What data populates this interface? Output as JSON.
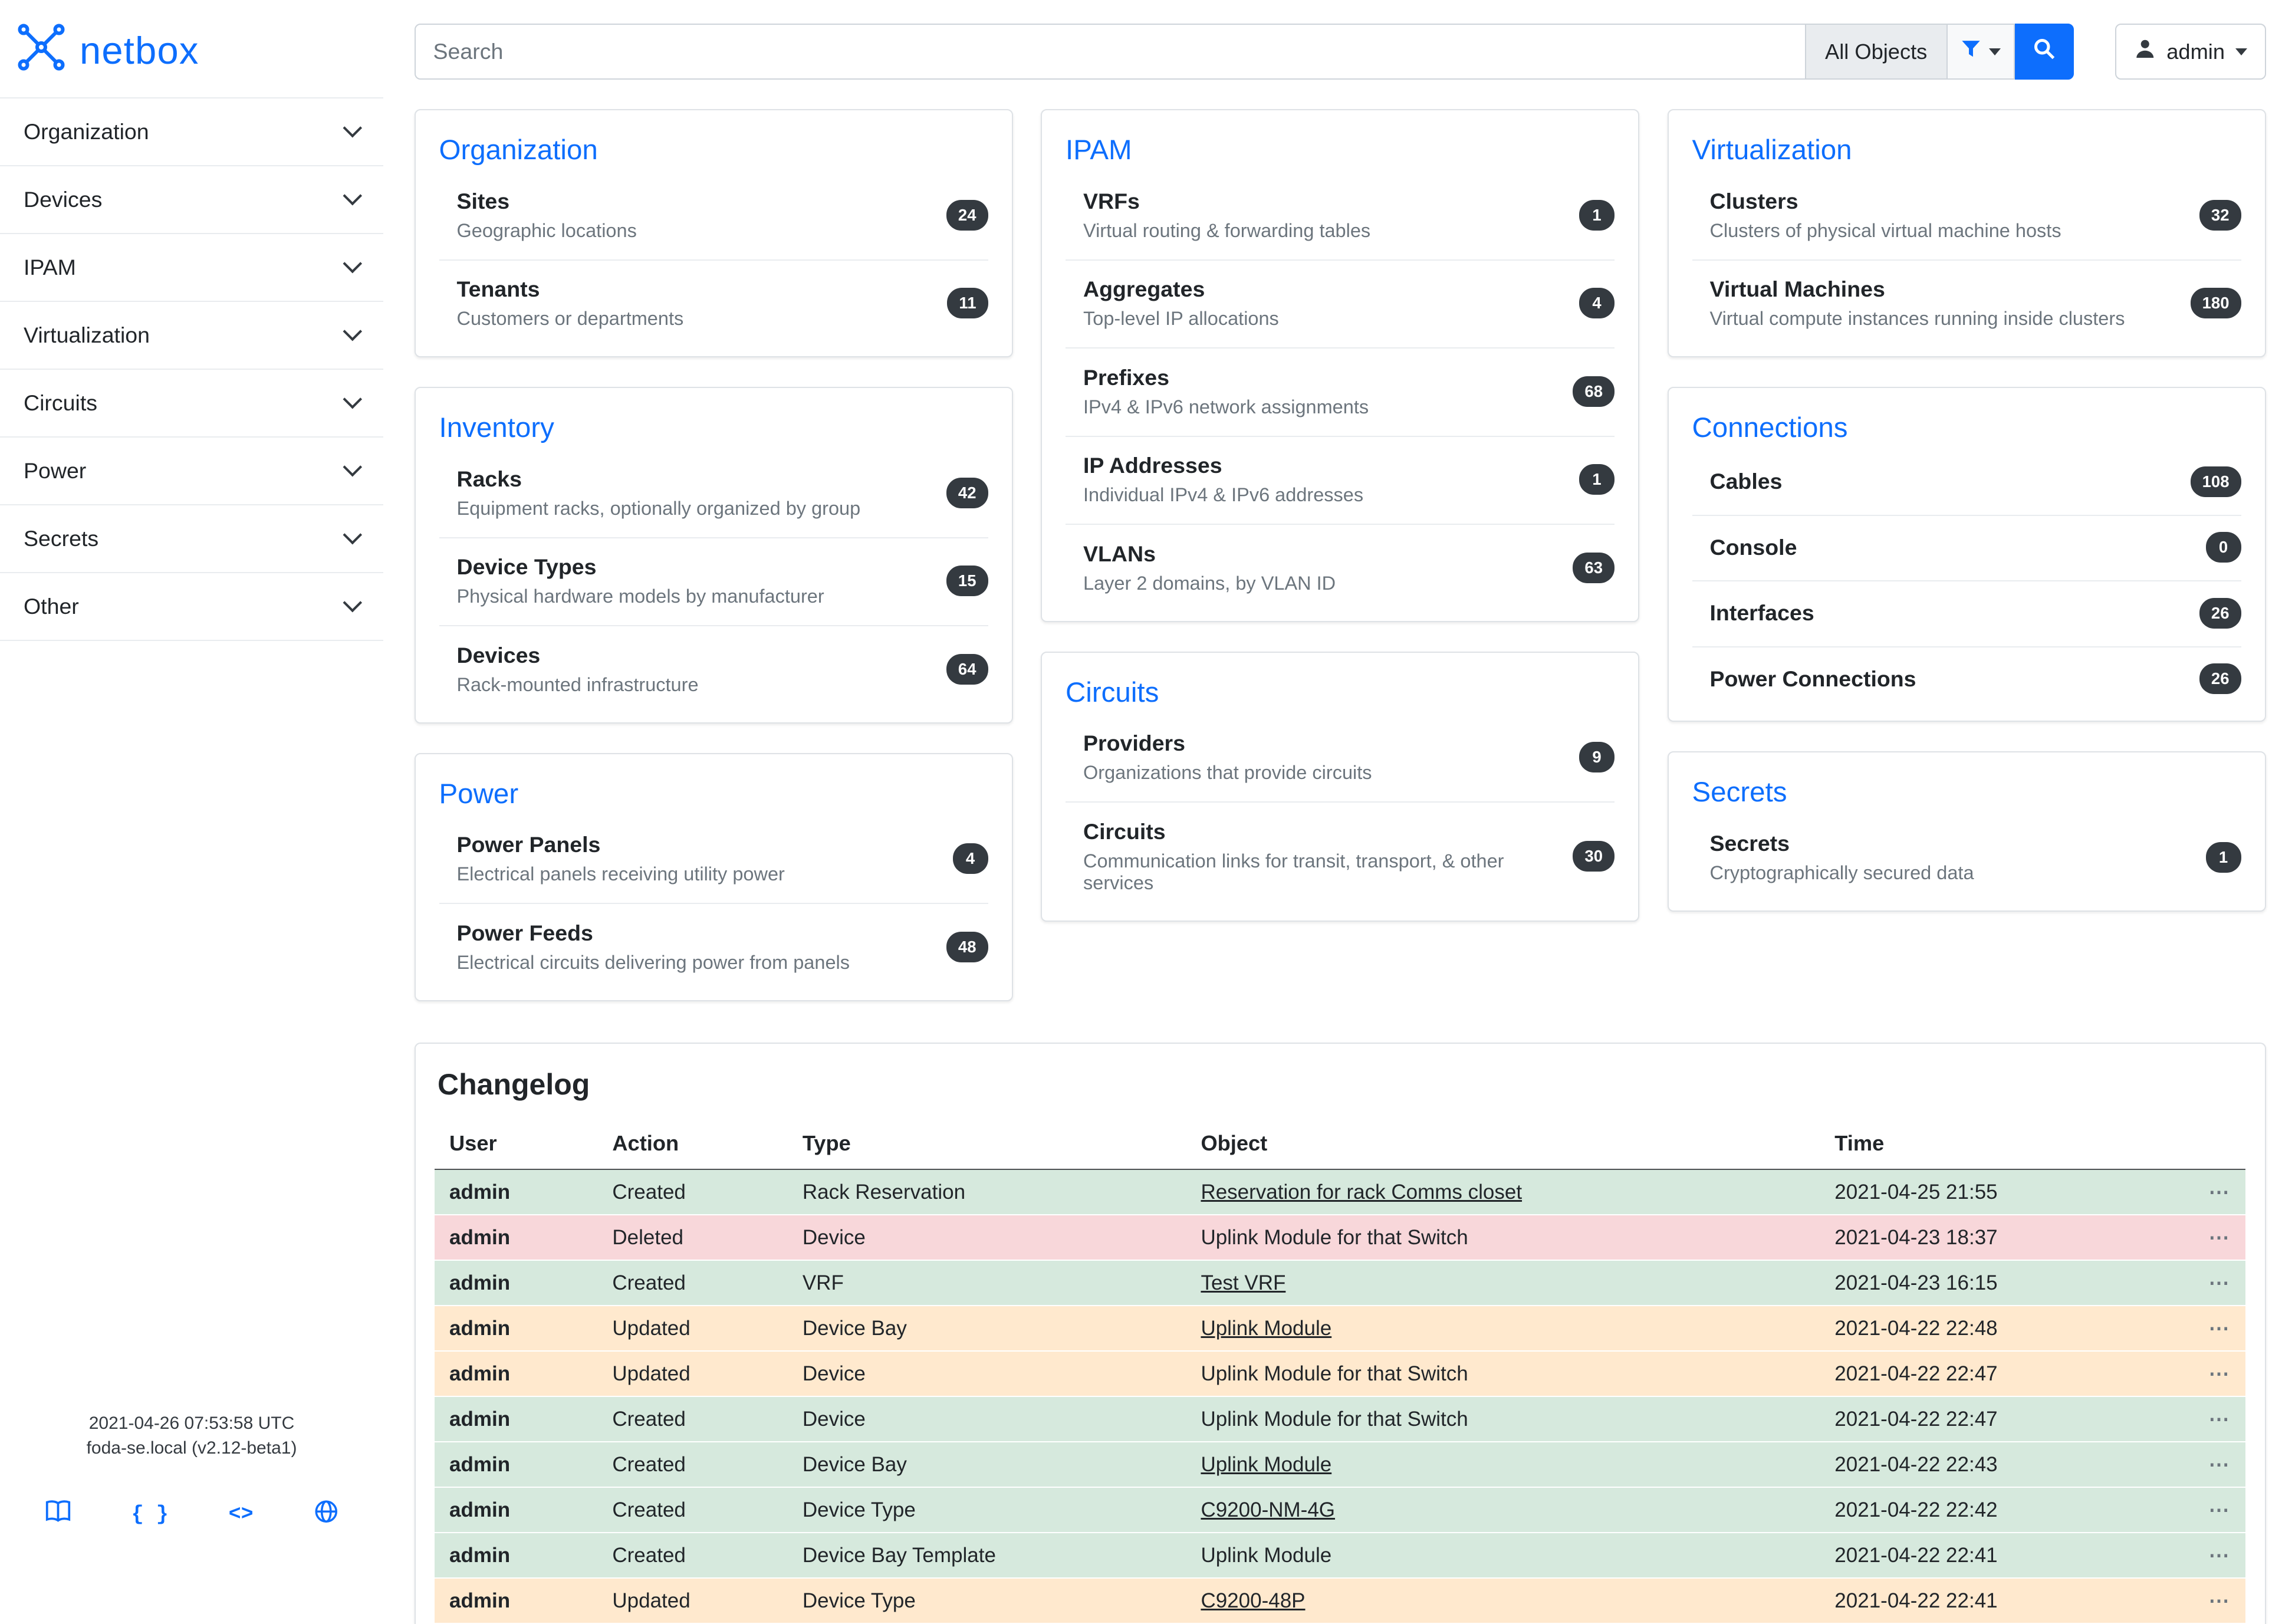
{
  "meta": {
    "brand": "netbox",
    "accent_color": "#0d6efd",
    "badge_color": "#343a40"
  },
  "topbar": {
    "search_placeholder": "Search",
    "scope_button": "All Objects",
    "filter_icon": "funnel-icon",
    "search_icon": "magnifier-icon",
    "user": "admin"
  },
  "sidebar": {
    "items": [
      {
        "label": "Organization"
      },
      {
        "label": "Devices"
      },
      {
        "label": "IPAM"
      },
      {
        "label": "Virtualization"
      },
      {
        "label": "Circuits"
      },
      {
        "label": "Power"
      },
      {
        "label": "Secrets"
      },
      {
        "label": "Other"
      }
    ],
    "footer": {
      "line1": "2021-04-26 07:53:58 UTC",
      "line2": "foda-se.local (v2.12-beta1)"
    },
    "footer_icons": [
      "docs-book-icon",
      "rest-api-braces-icon",
      "code-brackets-icon",
      "community-globe-icon"
    ]
  },
  "dashboard": {
    "columns": [
      [
        {
          "title": "Organization",
          "items": [
            {
              "name": "Sites",
              "desc": "Geographic locations",
              "count": "24"
            },
            {
              "name": "Tenants",
              "desc": "Customers or departments",
              "count": "11"
            }
          ]
        },
        {
          "title": "Inventory",
          "items": [
            {
              "name": "Racks",
              "desc": "Equipment racks, optionally organized by group",
              "count": "42"
            },
            {
              "name": "Device Types",
              "desc": "Physical hardware models by manufacturer",
              "count": "15"
            },
            {
              "name": "Devices",
              "desc": "Rack-mounted infrastructure",
              "count": "64"
            }
          ]
        },
        {
          "title": "Power",
          "items": [
            {
              "name": "Power Panels",
              "desc": "Electrical panels receiving utility power",
              "count": "4"
            },
            {
              "name": "Power Feeds",
              "desc": "Electrical circuits delivering power from panels",
              "count": "48"
            }
          ]
        }
      ],
      [
        {
          "title": "IPAM",
          "items": [
            {
              "name": "VRFs",
              "desc": "Virtual routing & forwarding tables",
              "count": "1"
            },
            {
              "name": "Aggregates",
              "desc": "Top-level IP allocations",
              "count": "4"
            },
            {
              "name": "Prefixes",
              "desc": "IPv4 & IPv6 network assignments",
              "count": "68"
            },
            {
              "name": "IP Addresses",
              "desc": "Individual IPv4 & IPv6 addresses",
              "count": "1"
            },
            {
              "name": "VLANs",
              "desc": "Layer 2 domains, by VLAN ID",
              "count": "63"
            }
          ]
        },
        {
          "title": "Circuits",
          "items": [
            {
              "name": "Providers",
              "desc": "Organizations that provide circuits",
              "count": "9"
            },
            {
              "name": "Circuits",
              "desc": "Communication links for transit, transport, & other services",
              "count": "30"
            }
          ]
        }
      ],
      [
        {
          "title": "Virtualization",
          "items": [
            {
              "name": "Clusters",
              "desc": "Clusters of physical virtual machine hosts",
              "count": "32"
            },
            {
              "name": "Virtual Machines",
              "desc": "Virtual compute instances running inside clusters",
              "count": "180"
            }
          ]
        },
        {
          "title": "Connections",
          "items": [
            {
              "name": "Cables",
              "count": "108"
            },
            {
              "name": "Console",
              "count": "0"
            },
            {
              "name": "Interfaces",
              "count": "26"
            },
            {
              "name": "Power Connections",
              "count": "26"
            }
          ]
        },
        {
          "title": "Secrets",
          "items": [
            {
              "name": "Secrets",
              "desc": "Cryptographically secured data",
              "count": "1"
            }
          ]
        }
      ]
    ]
  },
  "changelog": {
    "title": "Changelog",
    "columns": [
      "User",
      "Action",
      "Type",
      "Object",
      "Time"
    ],
    "actions_ellipsis": "⋯",
    "rows": [
      {
        "user": "admin",
        "action": "Created",
        "type": "Rack Reservation",
        "object": "Reservation for rack Comms closet",
        "object_link": true,
        "time": "2021-04-25 21:55",
        "status": "created"
      },
      {
        "user": "admin",
        "action": "Deleted",
        "type": "Device",
        "object": "Uplink Module for that Switch",
        "object_link": false,
        "time": "2021-04-23 18:37",
        "status": "deleted"
      },
      {
        "user": "admin",
        "action": "Created",
        "type": "VRF",
        "object": "Test VRF",
        "object_link": true,
        "time": "2021-04-23 16:15",
        "status": "created"
      },
      {
        "user": "admin",
        "action": "Updated",
        "type": "Device Bay",
        "object": "Uplink Module",
        "object_link": true,
        "time": "2021-04-22 22:48",
        "status": "updated"
      },
      {
        "user": "admin",
        "action": "Updated",
        "type": "Device",
        "object": "Uplink Module for that Switch",
        "object_link": false,
        "time": "2021-04-22 22:47",
        "status": "updated"
      },
      {
        "user": "admin",
        "action": "Created",
        "type": "Device",
        "object": "Uplink Module for that Switch",
        "object_link": false,
        "time": "2021-04-22 22:47",
        "status": "created"
      },
      {
        "user": "admin",
        "action": "Created",
        "type": "Device Bay",
        "object": "Uplink Module",
        "object_link": true,
        "time": "2021-04-22 22:43",
        "status": "created"
      },
      {
        "user": "admin",
        "action": "Created",
        "type": "Device Type",
        "object": "C9200-NM-4G",
        "object_link": true,
        "time": "2021-04-22 22:42",
        "status": "created"
      },
      {
        "user": "admin",
        "action": "Created",
        "type": "Device Bay Template",
        "object": "Uplink Module",
        "object_link": false,
        "time": "2021-04-22 22:41",
        "status": "created"
      },
      {
        "user": "admin",
        "action": "Updated",
        "type": "Device Type",
        "object": "C9200-48P",
        "object_link": true,
        "time": "2021-04-22 22:41",
        "status": "updated"
      }
    ]
  }
}
